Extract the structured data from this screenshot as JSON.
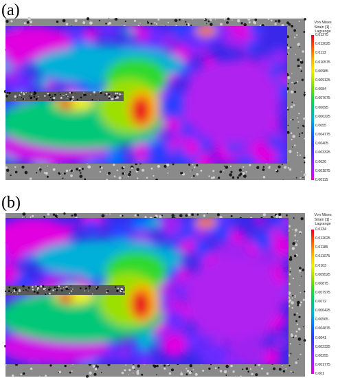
{
  "panels": [
    {
      "label": "(a)",
      "colorbar": {
        "title_lines": [
          "Von Mises",
          "Strain [1] -",
          "Lagrange"
        ],
        "ticks": [
          "0.01275",
          "0.012025",
          "0.0113",
          "0.010575",
          "0.00985",
          "0.009125",
          "0.0084",
          "0.007675",
          "0.00695",
          "0.006225",
          "0.0055",
          "0.004775",
          "0.00405",
          "0.003325",
          "0.0026",
          "0.001875",
          "0.00115"
        ]
      }
    },
    {
      "label": "(b)",
      "colorbar": {
        "title_lines": [
          "Von Mises",
          "Strain [1] -",
          "Lagrange"
        ],
        "ticks": [
          "0.0134",
          "0.012625",
          "0.01185",
          "0.011075",
          "0.0103",
          "0.009525",
          "0.00875",
          "0.007975",
          "0.0072",
          "0.006425",
          "0.00565",
          "0.004875",
          "0.0041",
          "0.003325",
          "0.00255",
          "0.001775",
          "0.001"
        ]
      }
    }
  ],
  "colors": {
    "colormap": [
      "#e8001c",
      "#ff5a00",
      "#ffb000",
      "#f0f000",
      "#9be000",
      "#2ed92e",
      "#00c878",
      "#00b0d8",
      "#0070ff",
      "#2a3cff",
      "#6a2cff",
      "#a020f0",
      "#e000e0"
    ],
    "speckle_bg": "#8a8a8a"
  }
}
